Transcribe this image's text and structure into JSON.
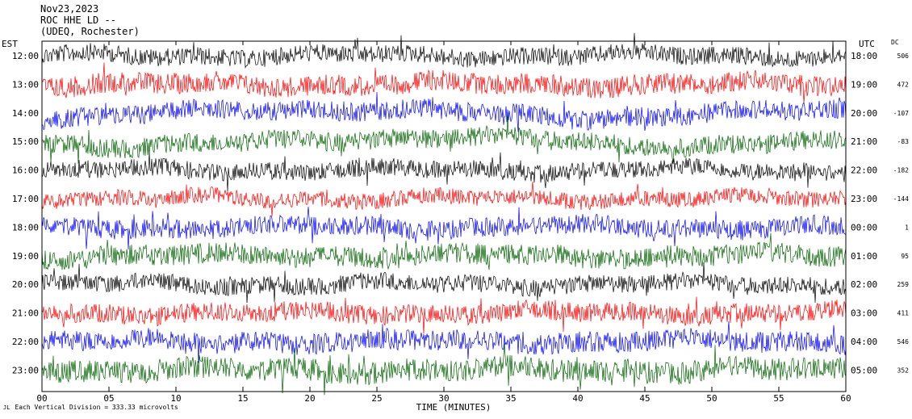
{
  "header": {
    "date": "Nov23,2023",
    "station": "ROC HHE LD --",
    "org": "(UDEQ, Rochester)"
  },
  "left_tz": "EST",
  "right_tz": "UTC",
  "dc_header": "DC",
  "footer": {
    "mark": "JL",
    "note": "Each Vertical Division = 333.33 microvolts"
  },
  "chart_data": {
    "type": "line",
    "xlabel": "TIME (MINUTES)",
    "xlim": [
      0,
      60
    ],
    "x_ticks": [
      "00",
      "05",
      "10",
      "15",
      "20",
      "25",
      "30",
      "35",
      "40",
      "45",
      "50",
      "55",
      "60"
    ],
    "rows": [
      {
        "est": "12:00",
        "utc": "18:00",
        "dc": "506",
        "color": "#000000"
      },
      {
        "est": "13:00",
        "utc": "19:00",
        "dc": "472",
        "color": "#ff0000"
      },
      {
        "est": "14:00",
        "utc": "20:00",
        "dc": "-107",
        "color": "#0000ff"
      },
      {
        "est": "15:00",
        "utc": "21:00",
        "dc": "-83",
        "color": "#006400"
      },
      {
        "est": "16:00",
        "utc": "22:00",
        "dc": "-182",
        "color": "#000000"
      },
      {
        "est": "17:00",
        "utc": "23:00",
        "dc": "-144",
        "color": "#ff0000"
      },
      {
        "est": "18:00",
        "utc": "00:00",
        "dc": "1",
        "color": "#0000ff"
      },
      {
        "est": "19:00",
        "utc": "01:00",
        "dc": "95",
        "color": "#006400"
      },
      {
        "est": "20:00",
        "utc": "02:00",
        "dc": "259",
        "color": "#000000"
      },
      {
        "est": "21:00",
        "utc": "03:00",
        "dc": "411",
        "color": "#ff0000"
      },
      {
        "est": "22:00",
        "utc": "04:00",
        "dc": "546",
        "color": "#0000ff"
      },
      {
        "est": "23:00",
        "utc": "05:00",
        "dc": "352",
        "color": "#006400"
      }
    ]
  }
}
